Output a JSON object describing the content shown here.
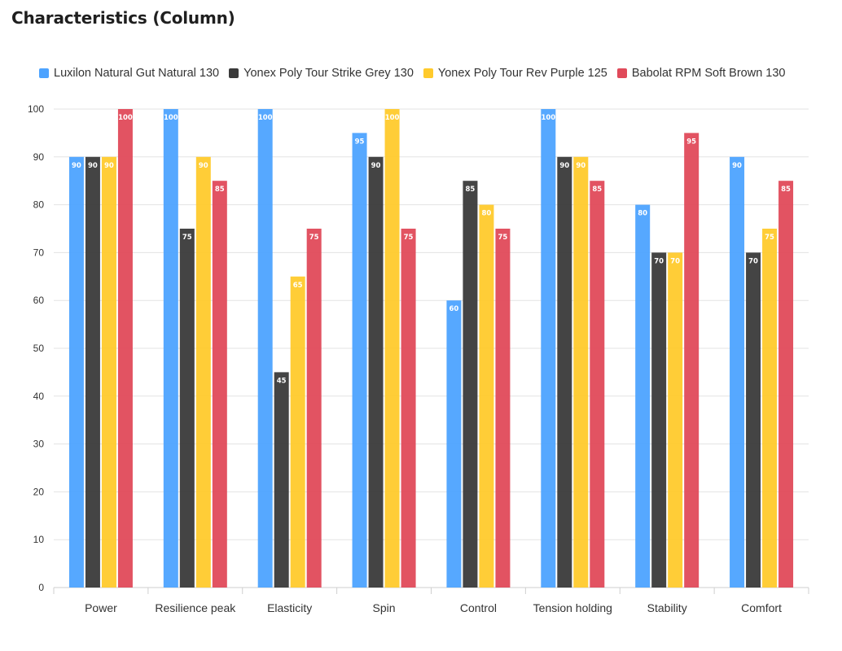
{
  "page": {
    "title": "Characteristics (Column)"
  },
  "chart_data": {
    "type": "bar",
    "title": "Characteristics (Column)",
    "categories": [
      "Power",
      "Resilience peak",
      "Elasticity",
      "Spin",
      "Control",
      "Tension holding",
      "Stability",
      "Comfort"
    ],
    "series": [
      {
        "name": "Luxilon Natural Gut Natural 130",
        "color": "#4da3ff",
        "values": [
          90,
          100,
          100,
          95,
          60,
          100,
          80,
          90
        ]
      },
      {
        "name": "Yonex Poly Tour Strike Grey 130",
        "color": "#3a3a3a",
        "values": [
          90,
          75,
          45,
          90,
          85,
          90,
          70,
          70
        ]
      },
      {
        "name": "Yonex Poly Tour Rev Purple 125",
        "color": "#ffca2c",
        "values": [
          90,
          90,
          65,
          100,
          80,
          90,
          70,
          75
        ]
      },
      {
        "name": "Babolat RPM Soft Brown 130",
        "color": "#e04a5a",
        "values": [
          100,
          85,
          75,
          75,
          75,
          85,
          95,
          85
        ]
      }
    ],
    "yticks": [
      0,
      10,
      20,
      30,
      40,
      50,
      60,
      70,
      80,
      90,
      100
    ],
    "ylim": [
      0,
      100
    ],
    "grid": true,
    "legend": "top",
    "data_labels": true
  }
}
